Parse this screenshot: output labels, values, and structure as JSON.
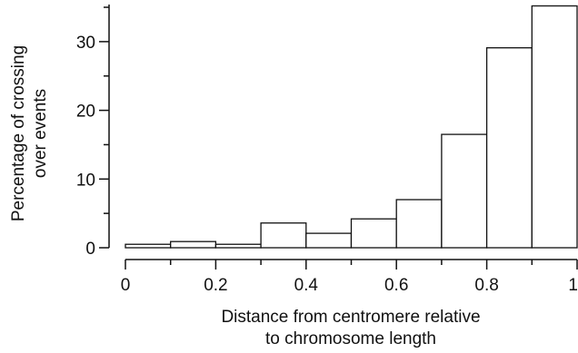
{
  "chart_data": {
    "type": "bar",
    "title": "",
    "xlabel": "Distance from centromere relative to chromosome length",
    "xlabel_lines": [
      "Distance from centromere relative",
      "to chromosome length"
    ],
    "ylabel": "Percentage of crossing over events",
    "ylabel_lines": [
      "Percentage of crossing",
      "over events"
    ],
    "bins": [
      {
        "x0": 0.0,
        "x1": 0.1,
        "value": 0.5
      },
      {
        "x0": 0.1,
        "x1": 0.2,
        "value": 0.9
      },
      {
        "x0": 0.2,
        "x1": 0.3,
        "value": 0.5
      },
      {
        "x0": 0.3,
        "x1": 0.4,
        "value": 3.6
      },
      {
        "x0": 0.4,
        "x1": 0.5,
        "value": 2.1
      },
      {
        "x0": 0.5,
        "x1": 0.6,
        "value": 4.2
      },
      {
        "x0": 0.6,
        "x1": 0.7,
        "value": 7.0
      },
      {
        "x0": 0.7,
        "x1": 0.8,
        "value": 16.5
      },
      {
        "x0": 0.8,
        "x1": 0.9,
        "value": 29.1
      },
      {
        "x0": 0.9,
        "x1": 1.0,
        "value": 35.2
      }
    ],
    "xlim": [
      0,
      1
    ],
    "ylim": [
      0,
      35.4
    ],
    "x_ticks": [
      {
        "value": 0.0,
        "label": "0"
      },
      {
        "value": 0.2,
        "label": "0.2"
      },
      {
        "value": 0.4,
        "label": "0.4"
      },
      {
        "value": 0.6,
        "label": "0.6"
      },
      {
        "value": 0.8,
        "label": "0.8"
      },
      {
        "value": 1.0,
        "label": "1"
      }
    ],
    "x_minor_ticks": [
      0.1,
      0.3,
      0.5,
      0.7,
      0.9
    ],
    "y_ticks": [
      {
        "value": 0,
        "label": "0"
      },
      {
        "value": 10,
        "label": "10"
      },
      {
        "value": 20,
        "label": "20"
      },
      {
        "value": 30,
        "label": "30"
      }
    ],
    "y_minor_ticks": [
      5,
      15,
      25,
      35
    ],
    "grid": false,
    "colors": {
      "bar_fill": "#ffffff",
      "bar_stroke": "#111111",
      "axis": "#111111"
    }
  }
}
